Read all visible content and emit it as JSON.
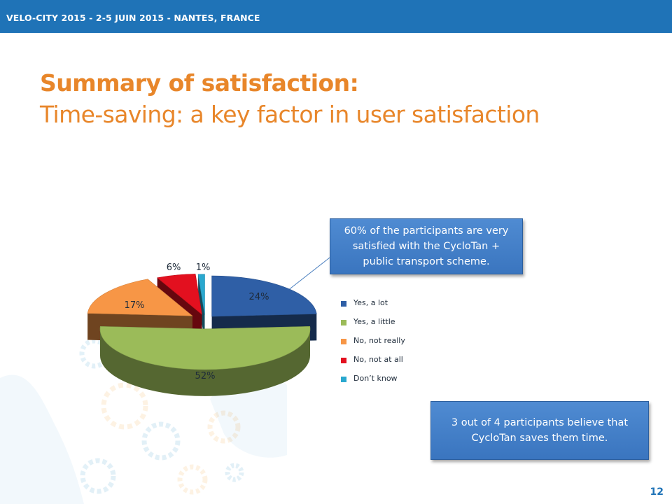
{
  "header": {
    "banner_text": "VELO-CITY 2015 - 2-5 JUIN 2015 - NANTES, FRANCE",
    "bar_color": "#1f73b7"
  },
  "slide": {
    "title": "Summary of satisfaction:",
    "subtitle": "Time-saving: a key factor in user satisfaction",
    "title_color": "#e8862a",
    "page_number": "12"
  },
  "callouts": {
    "top": "60% of the participants are very satisfied with the CycloTan + public transport scheme.",
    "bottom": "3 out of 4 participants believe that CycloTan saves them time."
  },
  "chart_data": {
    "type": "pie",
    "title": "",
    "style": "3d-exploded",
    "legend_placement": "right",
    "slices": [
      {
        "label": "Yes, a lot",
        "value": 24,
        "value_label": "24%",
        "color": "#2f5fa6"
      },
      {
        "label": "Yes, a little",
        "value": 52,
        "value_label": "52%",
        "color": "#9bbb59"
      },
      {
        "label": "No, not really",
        "value": 17,
        "value_label": "17%",
        "color": "#f79646"
      },
      {
        "label": "No, not at all",
        "value": 6,
        "value_label": "6%",
        "color": "#e3101f"
      },
      {
        "label": "Don’t know",
        "value": 1,
        "value_label": "1%",
        "color": "#2aa8cf"
      }
    ]
  }
}
